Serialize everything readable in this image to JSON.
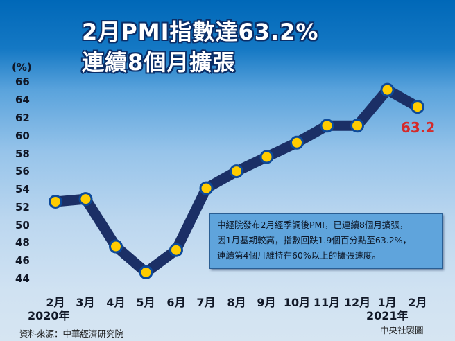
{
  "title": {
    "line1": "2月PMI指數達63.2%",
    "line2": "連續8個月擴張"
  },
  "y_unit": "(%)",
  "y_ticks": [
    "66",
    "64",
    "62",
    "60",
    "58",
    "56",
    "54",
    "52",
    "50",
    "48",
    "46",
    "44"
  ],
  "x_ticks": [
    "2月",
    "3月",
    "4月",
    "5月",
    "6月",
    "7月",
    "8月",
    "9月",
    "10月",
    "11月",
    "12月",
    "1月",
    "2月"
  ],
  "years": {
    "start": "2020年",
    "end": "2021年"
  },
  "last_value_label": "63.2",
  "annotation": {
    "lines": [
      "中經院發布2月經季調後PMI，已連續8個月擴張，",
      "因1月基期較高，指數回跌1.9個百分點至63.2%，",
      "連續第4個月維持在60%以上的擴張速度。"
    ]
  },
  "footer": {
    "source": "資料來源：中華經濟研究院",
    "credit": "中央社製圖"
  },
  "colors": {
    "line": "#1b2f66",
    "marker_fill": "#ffcc00",
    "marker_stroke": "#0d4a9a",
    "highlight": "#d42a2a"
  },
  "chart_data": {
    "type": "line",
    "title": "2月PMI指數達63.2% 連續8個月擴張",
    "xlabel": "",
    "ylabel": "(%)",
    "ylim": [
      44,
      66
    ],
    "grid": false,
    "legend": "none",
    "categories": [
      "2020年2月",
      "3月",
      "4月",
      "5月",
      "6月",
      "7月",
      "8月",
      "9月",
      "10月",
      "11月",
      "12月",
      "2021年1月",
      "2月"
    ],
    "series": [
      {
        "name": "PMI",
        "values": [
          52.6,
          52.9,
          47.6,
          44.7,
          47.2,
          54.1,
          56.0,
          57.6,
          59.2,
          61.1,
          61.1,
          65.1,
          63.2
        ]
      }
    ],
    "annotations": [
      "63.2"
    ]
  }
}
